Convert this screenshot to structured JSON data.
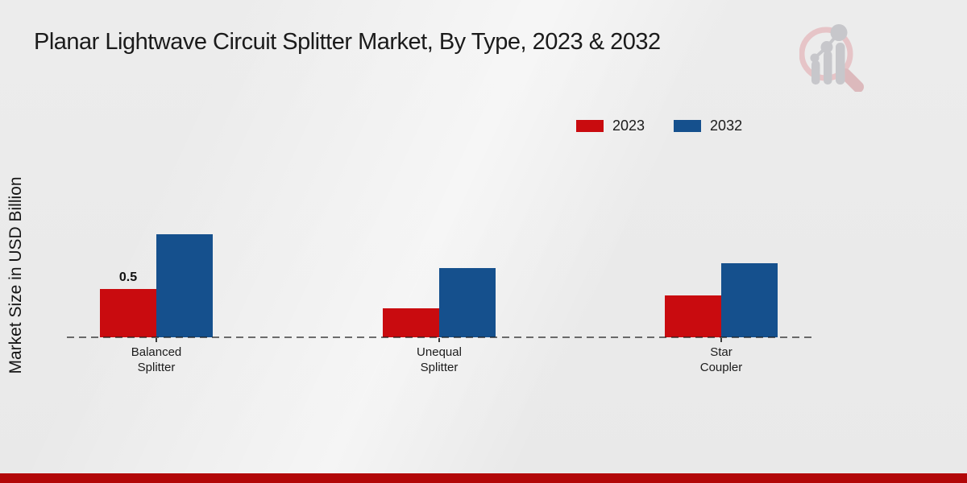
{
  "page": {
    "title": "Planar Lightwave Circuit Splitter Market, By Type, 2023 & 2032"
  },
  "y_axis_label": "Market Size in USD Billion",
  "logo_icon": "magnifier-bar-chart-logo",
  "colors": {
    "series_2023": "#c90b0f",
    "series_2032": "#15508d",
    "footer_bar": "#b20708",
    "background": "#ebebeb",
    "dashed_baseline": "rgba(25,25,25,0.62)"
  },
  "chart_data": {
    "type": "bar",
    "title": "Planar Lightwave Circuit Splitter Market, By Type, 2023 & 2032",
    "categories": [
      "Balanced Splitter",
      "Unequal Splitter",
      "Star Coupler"
    ],
    "series": [
      {
        "name": "2023",
        "color": "#c90b0f",
        "values": [
          0.5,
          0.3,
          0.43
        ]
      },
      {
        "name": "2032",
        "color": "#15508d",
        "values": [
          1.07,
          0.72,
          0.77
        ]
      }
    ],
    "bar_labels": [
      {
        "series": 0,
        "category": 0,
        "text": "0.5"
      }
    ],
    "xlabel": "",
    "ylabel": "Market Size in USD Billion",
    "unit": "USD Billion",
    "ylim": [
      0,
      1.5
    ],
    "grid": false,
    "y_ticks_visible": false,
    "legend_position": "top-right"
  }
}
